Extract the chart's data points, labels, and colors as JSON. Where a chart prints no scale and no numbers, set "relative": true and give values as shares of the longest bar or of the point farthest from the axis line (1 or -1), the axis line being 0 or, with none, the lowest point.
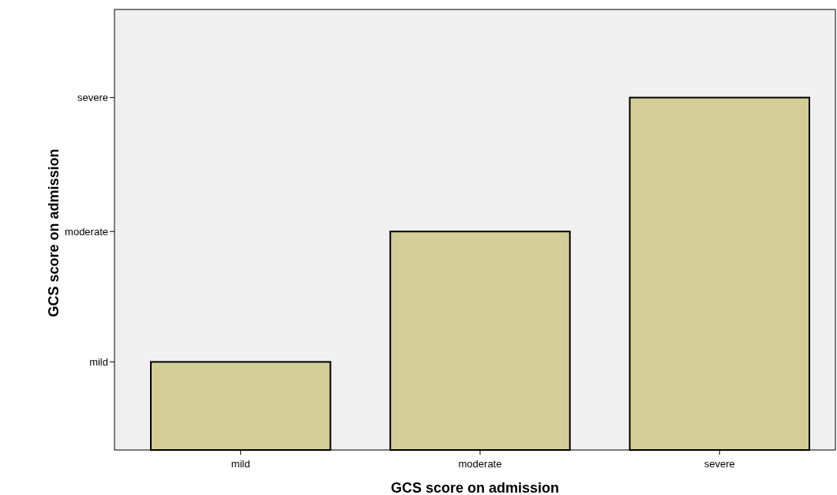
{
  "chart_data": {
    "type": "bar",
    "xlabel": "GCS score on admission",
    "ylabel": "GCS score on admission",
    "categories": [
      "mild",
      "moderate",
      "severe"
    ],
    "values": [
      0.25,
      0.62,
      1
    ],
    "color": "#d3ce97",
    "relative": true,
    "annotations": [
      "mild",
      "moderate",
      "severe"
    ],
    "grid": false
  }
}
